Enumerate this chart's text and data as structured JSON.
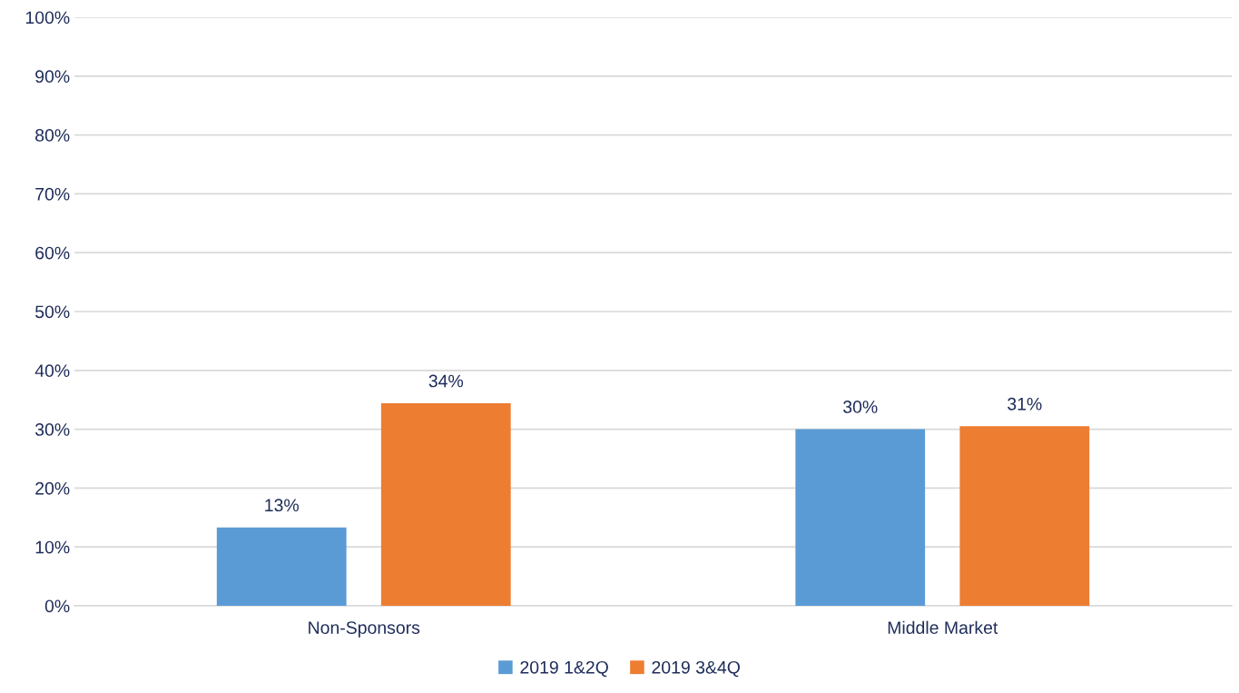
{
  "chart_data": {
    "type": "bar",
    "categories": [
      "Non-Sponsors",
      "Middle Market"
    ],
    "series": [
      {
        "name": "2019 1&2Q",
        "color": "#5b9bd5",
        "values": [
          13.3,
          30
        ],
        "value_labels": [
          "13%",
          "30%"
        ]
      },
      {
        "name": "2019 3&4Q",
        "color": "#ed7d31",
        "values": [
          34.4,
          30.5
        ],
        "value_labels": [
          "34%",
          "31%"
        ]
      }
    ],
    "ylim": [
      0,
      100
    ],
    "yticks": [
      {
        "value": 0,
        "label": "0%"
      },
      {
        "value": 10,
        "label": "10%"
      },
      {
        "value": 20,
        "label": "20%"
      },
      {
        "value": 30,
        "label": "30%"
      },
      {
        "value": 40,
        "label": "40%"
      },
      {
        "value": 50,
        "label": "50%"
      },
      {
        "value": 60,
        "label": "60%"
      },
      {
        "value": 70,
        "label": "70%"
      },
      {
        "value": 80,
        "label": "80%"
      },
      {
        "value": 90,
        "label": "90%"
      },
      {
        "value": 100,
        "label": "100%"
      }
    ],
    "grid": "y",
    "legend": "bottom"
  }
}
